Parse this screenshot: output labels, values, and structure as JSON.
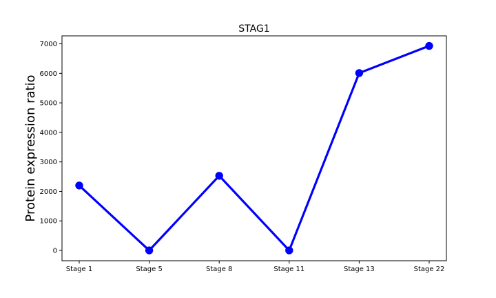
{
  "chart_data": {
    "type": "line",
    "title": "STAG1",
    "xlabel": "",
    "ylabel": "Protein expression ratio",
    "categories": [
      "Stage 1",
      "Stage 5",
      "Stage 8",
      "Stage 11",
      "Stage 13",
      "Stage 22"
    ],
    "series": [
      {
        "values": [
          2200,
          0,
          2530,
          0,
          6010,
          6930
        ]
      }
    ],
    "ylim": [
      -350,
      7270
    ],
    "yticks": [
      0,
      1000,
      2000,
      3000,
      4000,
      5000,
      6000,
      7000
    ],
    "grid": false,
    "colors": {
      "line": "#0000ff",
      "marker": "#0000ff"
    }
  }
}
